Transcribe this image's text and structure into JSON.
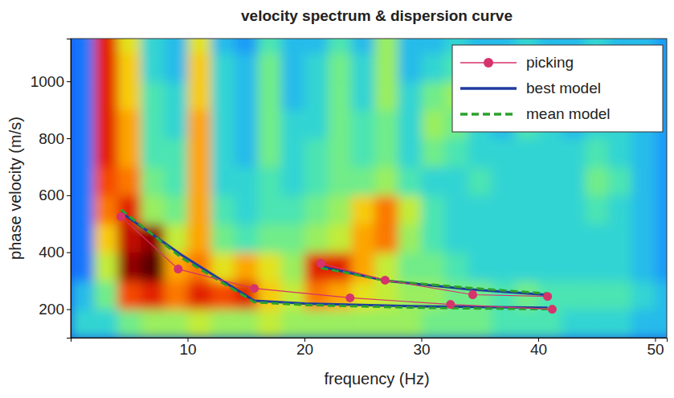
{
  "chart_data": {
    "type": "line",
    "title": "velocity spectrum & dispersion curve",
    "x_label": "frequency (Hz)",
    "y_label": "phase velocity (m/s)",
    "xlim": [
      0,
      51
    ],
    "ylim": [
      100,
      1150
    ],
    "xticks": [
      10,
      20,
      30,
      40,
      50
    ],
    "yticks": [
      200,
      400,
      600,
      800,
      1000
    ],
    "grid": false,
    "legend": "upper right",
    "series": [
      {
        "name": "picking",
        "color": "#d6336c",
        "marker": "circle",
        "line_style": "solid",
        "x": [
          4.3,
          9.2,
          15.7,
          23.9,
          32.5,
          41.2,
          null,
          21.4,
          26.9,
          34.4,
          40.8
        ],
        "values": [
          525,
          341,
          273,
          240,
          217,
          200,
          null,
          361,
          302,
          251,
          245
        ]
      },
      {
        "name": "best model",
        "color": "#1f3c9e",
        "line_style": "solid",
        "x": [
          4.3,
          9.5,
          15.7,
          20,
          30,
          40.8,
          null,
          21.4,
          27,
          34,
          40.8
        ],
        "values": [
          540,
          390,
          230,
          220,
          210,
          205,
          null,
          350,
          300,
          270,
          250
        ]
      },
      {
        "name": "mean model",
        "color": "#2ca02c",
        "line_style": "dashed",
        "x": [
          4.3,
          9.5,
          15.7,
          20,
          30,
          40.8,
          null,
          21.4,
          27,
          34,
          40.8
        ],
        "values": [
          550,
          380,
          225,
          215,
          205,
          200,
          null,
          345,
          300,
          275,
          255
        ]
      }
    ],
    "spectrum": {
      "x": [
        1,
        3,
        5,
        7,
        9,
        11,
        13,
        15,
        17,
        19,
        21,
        23,
        25,
        27,
        29,
        31,
        33,
        35,
        37,
        39,
        41,
        43,
        45,
        47,
        49,
        51
      ],
      "y": [
        150,
        250,
        350,
        450,
        550,
        650,
        750,
        850,
        950,
        1050,
        1150
      ],
      "z": [
        [
          0.35,
          0.35,
          0.45,
          0.5,
          0.5,
          0.55,
          0.5,
          0.5,
          0.55,
          0.5,
          0.5,
          0.5,
          0.5,
          0.5,
          0.5,
          0.45,
          0.45,
          0.45,
          0.4,
          0.4,
          0.4,
          0.35,
          0.35,
          0.35,
          0.3,
          0.3
        ],
        [
          0.3,
          0.45,
          0.8,
          0.85,
          0.75,
          0.85,
          0.8,
          0.85,
          0.65,
          0.55,
          0.75,
          0.7,
          0.6,
          0.55,
          0.5,
          0.5,
          0.45,
          0.45,
          0.4,
          0.45,
          0.4,
          0.4,
          0.4,
          0.4,
          0.35,
          0.3
        ],
        [
          0.2,
          0.55,
          0.95,
          1.0,
          0.7,
          0.75,
          0.6,
          0.7,
          0.6,
          0.5,
          0.85,
          0.85,
          0.7,
          0.55,
          0.45,
          0.45,
          0.4,
          0.35,
          0.35,
          0.35,
          0.35,
          0.35,
          0.35,
          0.35,
          0.3,
          0.25
        ],
        [
          0.2,
          0.65,
          0.9,
          0.95,
          0.55,
          0.7,
          0.45,
          0.4,
          0.45,
          0.45,
          0.5,
          0.55,
          0.7,
          0.75,
          0.5,
          0.4,
          0.35,
          0.35,
          0.35,
          0.35,
          0.35,
          0.35,
          0.35,
          0.35,
          0.3,
          0.25
        ],
        [
          0.2,
          0.75,
          0.85,
          0.5,
          0.45,
          0.7,
          0.4,
          0.35,
          0.4,
          0.4,
          0.45,
          0.5,
          0.65,
          0.75,
          0.55,
          0.4,
          0.35,
          0.35,
          0.35,
          0.35,
          0.35,
          0.35,
          0.4,
          0.35,
          0.3,
          0.25
        ],
        [
          0.2,
          0.8,
          0.75,
          0.45,
          0.4,
          0.7,
          0.35,
          0.35,
          0.4,
          0.35,
          0.4,
          0.45,
          0.45,
          0.5,
          0.4,
          0.35,
          0.35,
          0.4,
          0.35,
          0.35,
          0.35,
          0.35,
          0.45,
          0.4,
          0.3,
          0.25
        ],
        [
          0.2,
          0.85,
          0.7,
          0.4,
          0.4,
          0.7,
          0.35,
          0.3,
          0.45,
          0.35,
          0.4,
          0.45,
          0.4,
          0.45,
          0.35,
          0.45,
          0.4,
          0.35,
          0.35,
          0.35,
          0.35,
          0.35,
          0.4,
          0.35,
          0.3,
          0.25
        ],
        [
          0.2,
          0.85,
          0.7,
          0.4,
          0.35,
          0.7,
          0.35,
          0.3,
          0.45,
          0.35,
          0.35,
          0.45,
          0.4,
          0.45,
          0.35,
          0.5,
          0.45,
          0.35,
          0.3,
          0.4,
          0.35,
          0.3,
          0.35,
          0.35,
          0.3,
          0.25
        ],
        [
          0.2,
          0.85,
          0.65,
          0.4,
          0.35,
          0.65,
          0.35,
          0.3,
          0.45,
          0.3,
          0.35,
          0.45,
          0.35,
          0.5,
          0.35,
          0.45,
          0.5,
          0.35,
          0.3,
          0.45,
          0.3,
          0.3,
          0.35,
          0.3,
          0.3,
          0.25
        ],
        [
          0.2,
          0.85,
          0.65,
          0.35,
          0.3,
          0.65,
          0.35,
          0.3,
          0.45,
          0.3,
          0.35,
          0.45,
          0.35,
          0.5,
          0.3,
          0.35,
          0.4,
          0.3,
          0.3,
          0.4,
          0.3,
          0.3,
          0.35,
          0.3,
          0.3,
          0.25
        ],
        [
          0.2,
          0.85,
          0.6,
          0.35,
          0.3,
          0.6,
          0.3,
          0.25,
          0.4,
          0.3,
          0.3,
          0.4,
          0.3,
          0.5,
          0.3,
          0.3,
          0.35,
          0.3,
          0.3,
          0.35,
          0.3,
          0.3,
          0.35,
          0.3,
          0.3,
          0.25
        ]
      ]
    }
  }
}
